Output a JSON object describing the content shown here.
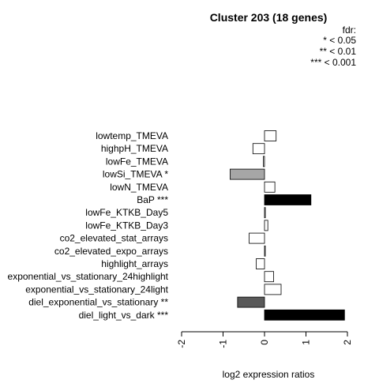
{
  "chart_data": {
    "type": "bar",
    "orientation": "horizontal",
    "title": "Cluster 203 (18 genes)",
    "legend": {
      "title": "fdr:",
      "entries": [
        "* < 0.05",
        "** < 0.01",
        "*** < 0.001"
      ],
      "placement": "top-right"
    },
    "xlabel": "log2 expression ratios",
    "xlim": [
      -2,
      2
    ],
    "xticks": [
      "-2",
      "-1",
      "0",
      "1",
      "2"
    ],
    "tick_values": [
      -2,
      -1,
      0,
      1,
      2
    ],
    "grid": false,
    "categories": [
      "lowtemp_TMEVA",
      "highpH_TMEVA",
      "lowFe_TMEVA",
      "lowSi_TMEVA *",
      "lowN_TMEVA",
      "BaP ***",
      "lowFe_KTKB_Day5",
      "lowFe_KTKB_Day3",
      "co2_elevated_stat_arrays",
      "co2_elevated_expo_arrays",
      "highlight_arrays",
      "exponential_vs_stationary_24highlight",
      "exponential_vs_stationary_24light",
      "diel_exponential_vs_stationary **",
      "diel_light_vs_dark ***"
    ],
    "values": [
      0.28,
      -0.28,
      -0.03,
      -0.83,
      0.25,
      1.12,
      0.02,
      0.08,
      -0.37,
      0.01,
      -0.2,
      0.22,
      0.4,
      -0.65,
      1.93
    ],
    "fills": [
      "#ffffff",
      "#ffffff",
      "#ffffff",
      "#a6a6a6",
      "#ffffff",
      "#000000",
      "#ffffff",
      "#ffffff",
      "#ffffff",
      "#ffffff",
      "#ffffff",
      "#ffffff",
      "#ffffff",
      "#595959",
      "#000000"
    ]
  }
}
